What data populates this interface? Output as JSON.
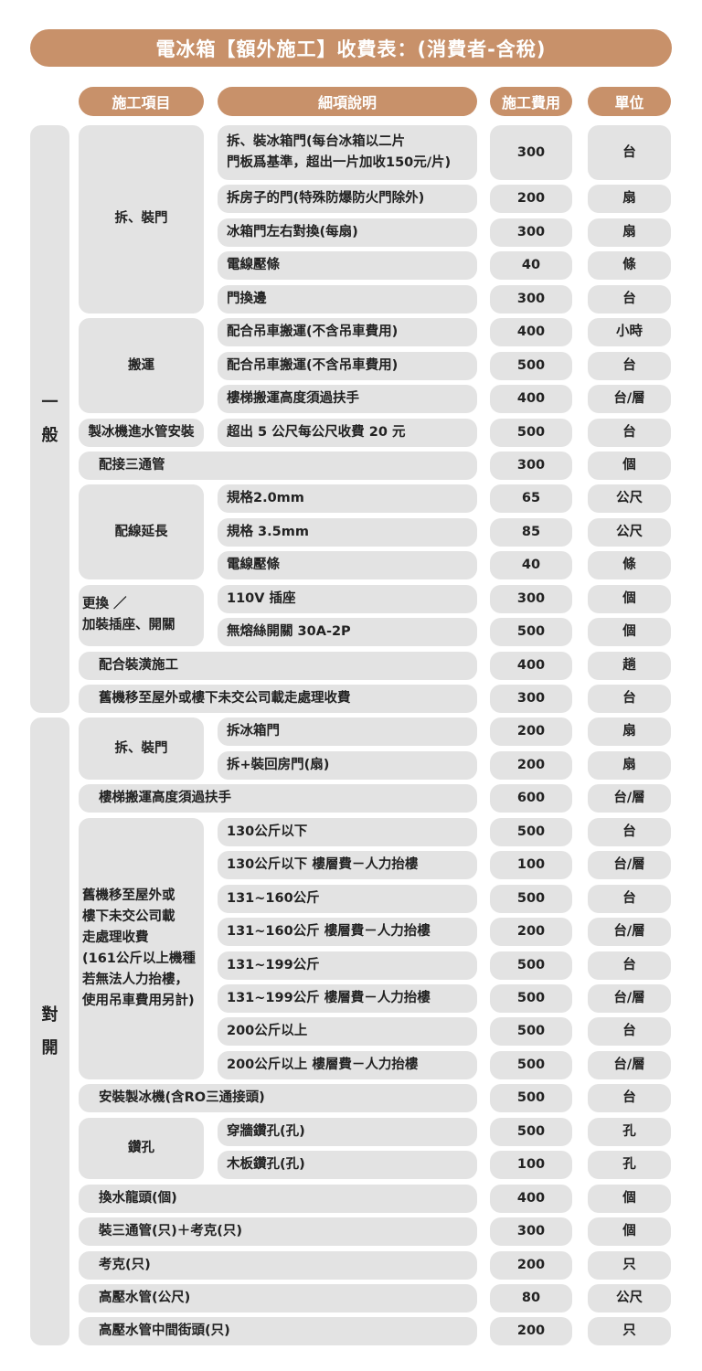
{
  "title": "電冰箱【額外施工】收費表：(消費者-含稅)",
  "headers": {
    "item": "施工項目",
    "desc": "細項說明",
    "fee": "施工費用",
    "unit": "單位"
  },
  "colors": {
    "accent": "#c8916a",
    "cell": "#e3e3e3"
  },
  "sections": [
    {
      "label": "一般",
      "groups": [
        {
          "item": "拆、裝門",
          "rows": [
            {
              "desc": "拆、裝冰箱門(每台冰箱以二片\n門板爲基準，超出一片加收150元/片)",
              "fee": "300",
              "unit": "台"
            },
            {
              "desc": "拆房子的門(特殊防爆防火門除外)",
              "fee": "200",
              "unit": "扇"
            },
            {
              "desc": "冰箱門左右對換(每扇)",
              "fee": "300",
              "unit": "扇"
            },
            {
              "desc": "電線壓條",
              "fee": "40",
              "unit": "條"
            },
            {
              "desc": "門換邊",
              "fee": "300",
              "unit": "台"
            }
          ]
        },
        {
          "item": "搬運",
          "rows": [
            {
              "desc": "配合吊車搬運(不含吊車費用)",
              "fee": "400",
              "unit": "小時"
            },
            {
              "desc": "配合吊車搬運(不含吊車費用)",
              "fee": "500",
              "unit": "台"
            },
            {
              "desc": "樓梯搬運高度須過扶手",
              "fee": "400",
              "unit": "台/層"
            }
          ]
        },
        {
          "item": "製冰機進水管安裝",
          "rows": [
            {
              "desc": "超出 5 公尺每公尺收費 20 元",
              "fee": "500",
              "unit": "台"
            }
          ]
        },
        {
          "item": "配接三通管",
          "rows": [
            {
              "fee": "300",
              "unit": "個"
            }
          ]
        },
        {
          "item": "配線延長",
          "rows": [
            {
              "desc": "規格2.0mm",
              "fee": "65",
              "unit": "公尺"
            },
            {
              "desc": "規格 3.5mm",
              "fee": "85",
              "unit": "公尺"
            },
            {
              "desc": "電線壓條",
              "fee": "40",
              "unit": "條"
            }
          ]
        },
        {
          "item": "更換 ／\n加裝插座、開關",
          "rows": [
            {
              "desc": "110V 插座",
              "fee": "300",
              "unit": "個"
            },
            {
              "desc": "無熔絲開關 30A-2P",
              "fee": "500",
              "unit": "個"
            }
          ]
        },
        {
          "item": "配合裝潢施工",
          "rows": [
            {
              "fee": "400",
              "unit": "趟"
            }
          ]
        },
        {
          "item": "舊機移至屋外或樓下未交公司載走處理收費",
          "rows": [
            {
              "fee": "300",
              "unit": "台"
            }
          ]
        }
      ]
    },
    {
      "label": "對開",
      "groups": [
        {
          "item": "拆、裝門",
          "rows": [
            {
              "desc": "拆冰箱門",
              "fee": "200",
              "unit": "扇"
            },
            {
              "desc": "拆+裝回房門(扇)",
              "fee": "200",
              "unit": "扇"
            }
          ]
        },
        {
          "item": "樓梯搬運高度須過扶手",
          "rows": [
            {
              "fee": "600",
              "unit": "台/層"
            }
          ]
        },
        {
          "item": "舊機移至屋外或\n樓下未交公司載\n走處理收費\n(161公斤以上機種\n若無法人力抬樓，\n使用吊車費用另計)",
          "rows": [
            {
              "desc": "130公斤以下",
              "fee": "500",
              "unit": "台"
            },
            {
              "desc": "130公斤以下 樓層費－人力抬樓",
              "fee": "100",
              "unit": "台/層"
            },
            {
              "desc": "131~160公斤",
              "fee": "500",
              "unit": "台"
            },
            {
              "desc": "131~160公斤 樓層費－人力抬樓",
              "fee": "200",
              "unit": "台/層"
            },
            {
              "desc": "131~199公斤",
              "fee": "500",
              "unit": "台"
            },
            {
              "desc": "131~199公斤 樓層費－人力抬樓",
              "fee": "500",
              "unit": "台/層"
            },
            {
              "desc": "200公斤以上",
              "fee": "500",
              "unit": "台"
            },
            {
              "desc": "200公斤以上 樓層費－人力抬樓",
              "fee": "500",
              "unit": "台/層"
            }
          ]
        },
        {
          "item": "安裝製冰機(含RO三通接頭)",
          "rows": [
            {
              "fee": "500",
              "unit": "台"
            }
          ]
        },
        {
          "item": "鑽孔",
          "rows": [
            {
              "desc": "穿牆鑽孔(孔)",
              "fee": "500",
              "unit": "孔"
            },
            {
              "desc": "木板鑽孔(孔)",
              "fee": "100",
              "unit": "孔"
            }
          ]
        },
        {
          "item": "換水龍頭(個)",
          "rows": [
            {
              "fee": "400",
              "unit": "個"
            }
          ]
        },
        {
          "item": "裝三通管(只)＋考克(只)",
          "rows": [
            {
              "fee": "300",
              "unit": "個"
            }
          ]
        },
        {
          "item": "考克(只)",
          "rows": [
            {
              "fee": "200",
              "unit": "只"
            }
          ]
        },
        {
          "item": "高壓水管(公尺)",
          "rows": [
            {
              "fee": "80",
              "unit": "公尺"
            }
          ]
        },
        {
          "item": "高壓水管中間街頭(只)",
          "rows": [
            {
              "fee": "200",
              "unit": "只"
            }
          ]
        }
      ]
    }
  ]
}
